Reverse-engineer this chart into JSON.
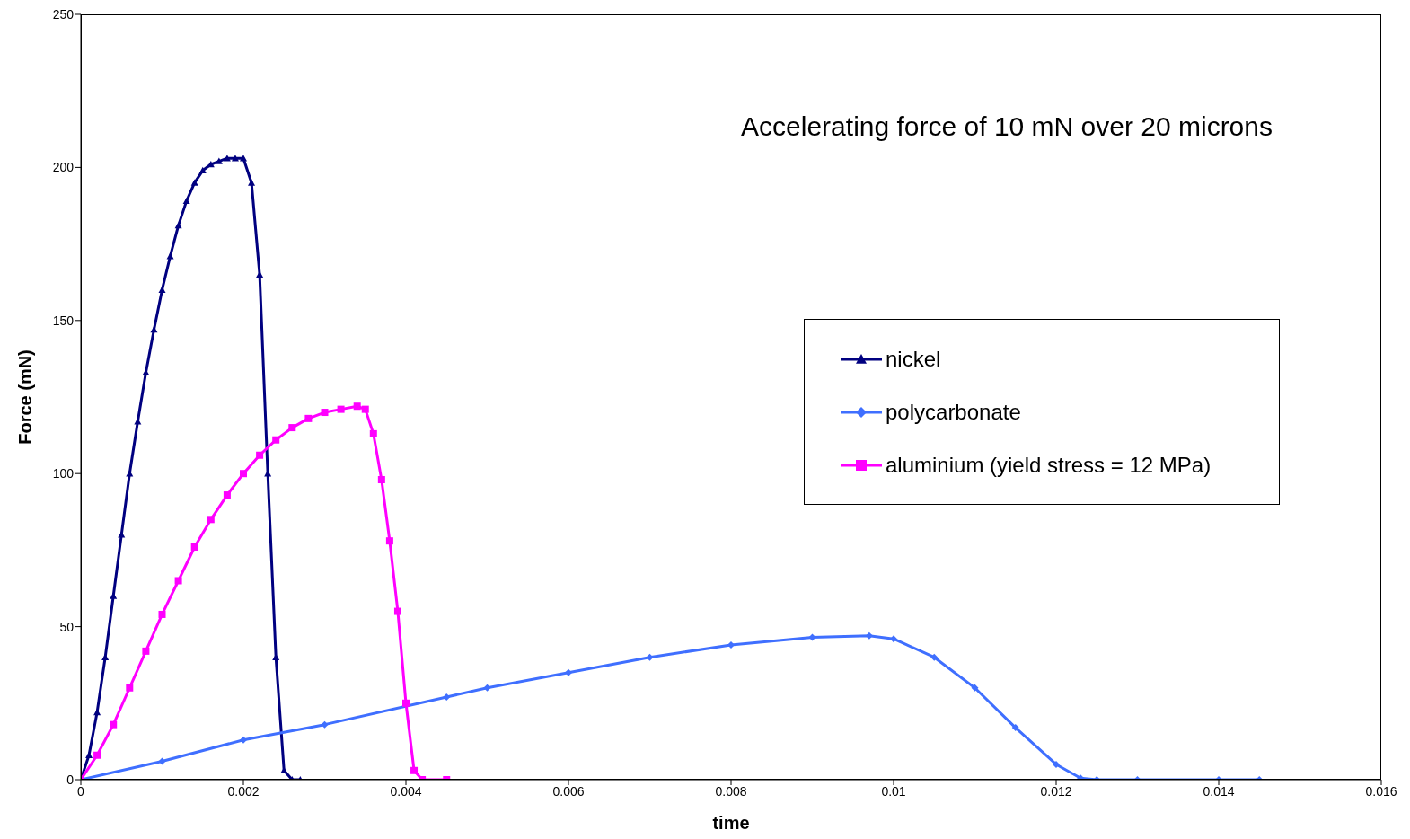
{
  "chart_data": {
    "type": "line",
    "xlabel": "time",
    "ylabel": "Force (mN)",
    "annotations": [
      "Accelerating force of 10 mN over 20 microns"
    ],
    "xlim": [
      0,
      0.016
    ],
    "xticks": [
      0,
      0.002,
      0.004,
      0.006,
      0.008,
      0.01,
      0.012,
      0.014,
      0.016
    ],
    "ylim": [
      0,
      250
    ],
    "yticks": [
      0,
      50,
      100,
      150,
      200,
      250
    ],
    "grid": false,
    "legend": "right",
    "line_style": "solid",
    "series": [
      {
        "name": "nickel",
        "color": "#000080",
        "marker": "triangle",
        "x": [
          0,
          0.0001,
          0.0002,
          0.0003,
          0.0004,
          0.0005,
          0.0006,
          0.0007,
          0.0008,
          0.0009,
          0.001,
          0.0011,
          0.0012,
          0.0013,
          0.0014,
          0.0015,
          0.0016,
          0.0017,
          0.0018,
          0.0019,
          0.002,
          0.0021,
          0.0022,
          0.0023,
          0.0024,
          0.0025,
          0.0026,
          0.0027
        ],
        "values": [
          0,
          8,
          22,
          40,
          60,
          80,
          100,
          117,
          133,
          147,
          160,
          171,
          181,
          189,
          195,
          199,
          201,
          202,
          203,
          203,
          203,
          195,
          165,
          100,
          40,
          3,
          0,
          0
        ]
      },
      {
        "name": "polycarbonate",
        "color": "#3f6fff",
        "marker": "diamond",
        "x": [
          0,
          0.001,
          0.002,
          0.003,
          0.0045,
          0.005,
          0.006,
          0.007,
          0.008,
          0.009,
          0.0097,
          0.01,
          0.0105,
          0.011,
          0.0115,
          0.012,
          0.0123,
          0.0125,
          0.013,
          0.014,
          0.0145
        ],
        "values": [
          0,
          6,
          13,
          18,
          27,
          30,
          35,
          40,
          44,
          46.5,
          47,
          46,
          40,
          30,
          17,
          5,
          0.5,
          0,
          0,
          0,
          0
        ]
      },
      {
        "name": "aluminium (yield stress = 12 MPa)",
        "color": "#ff00ff",
        "marker": "square",
        "x": [
          0,
          0.0002,
          0.0004,
          0.0006,
          0.0008,
          0.001,
          0.0012,
          0.0014,
          0.0016,
          0.0018,
          0.002,
          0.0022,
          0.0024,
          0.0026,
          0.0028,
          0.003,
          0.0032,
          0.0034,
          0.0035,
          0.0036,
          0.0037,
          0.0038,
          0.0039,
          0.004,
          0.0041,
          0.0042,
          0.0045
        ],
        "values": [
          0,
          8,
          18,
          30,
          42,
          54,
          65,
          76,
          85,
          93,
          100,
          106,
          111,
          115,
          118,
          120,
          121,
          122,
          121,
          113,
          98,
          78,
          55,
          25,
          3,
          0,
          0
        ]
      }
    ]
  }
}
